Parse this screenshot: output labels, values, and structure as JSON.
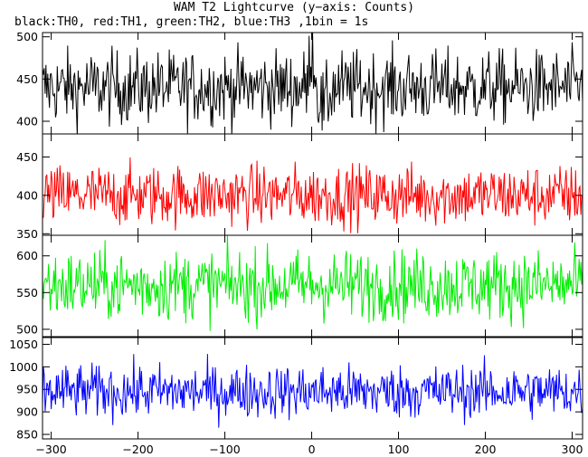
{
  "title": "WAM T2 Lightcurve (y−axis: Counts)",
  "subtitle": "black:TH0, red:TH1, green:TH2, blue:TH3 ,1bin = 1s",
  "chart_data": [
    {
      "type": "line",
      "series": [
        {
          "name": "TH0",
          "color": "#000000",
          "mean": 440,
          "spread": 22,
          "spike_near_x": 0
        }
      ],
      "xlim": [
        -310,
        312
      ],
      "ylim": [
        385,
        505
      ],
      "yticks": [
        400,
        450,
        500
      ],
      "bin_seconds": 1
    },
    {
      "type": "line",
      "series": [
        {
          "name": "TH1",
          "color": "#ff0000",
          "mean": 400,
          "spread": 20
        }
      ],
      "xlim": [
        -310,
        312
      ],
      "ylim": [
        348,
        480
      ],
      "yticks": [
        350,
        400,
        450
      ],
      "bin_seconds": 1
    },
    {
      "type": "line",
      "series": [
        {
          "name": "TH2",
          "color": "#00ee00",
          "mean": 560,
          "spread": 24
        }
      ],
      "xlim": [
        -310,
        312
      ],
      "ylim": [
        490,
        628
      ],
      "yticks": [
        500,
        550,
        600
      ],
      "bin_seconds": 1
    },
    {
      "type": "line",
      "series": [
        {
          "name": "TH3",
          "color": "#0000ff",
          "mean": 945,
          "spread": 30
        }
      ],
      "xlim": [
        -310,
        312
      ],
      "ylim": [
        840,
        1065
      ],
      "yticks": [
        850,
        900,
        950,
        1000,
        1050
      ],
      "bin_seconds": 1
    }
  ],
  "xticks": [
    -300,
    -200,
    -100,
    0,
    100,
    200,
    300
  ]
}
